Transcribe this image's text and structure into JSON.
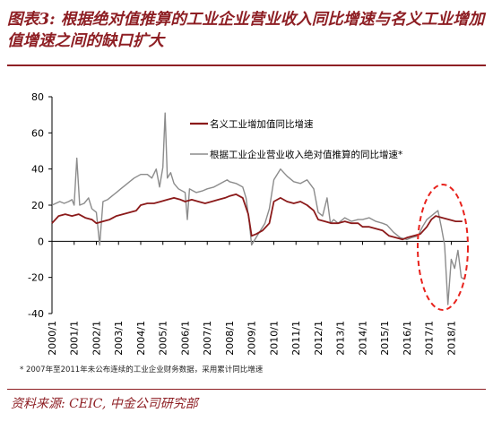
{
  "title": "图表3: 根据绝对值推算的工业企业营业收入同比增速与名义工业增加值增速之间的缺口扩大",
  "note": "* 2007年至2011年未公布连续的工业企业财务数据，采用累计同比增速",
  "source": "资料来源: CEIC, 中金公司研究部",
  "colors": {
    "title": "#8e1f24",
    "series1": "#8b1a1a",
    "series2": "#8c8c8c",
    "highlight": "#e8231d"
  },
  "chart_data": {
    "type": "line",
    "ylim": [
      -40,
      80
    ],
    "yticks": [
      "80",
      "60",
      "40",
      "20",
      "0",
      "-20",
      "-40"
    ],
    "xlim": [
      2000.0,
      2018.75
    ],
    "xticks": [
      "2000/1",
      "2001/1",
      "2002/1",
      "2003/1",
      "2004/1",
      "2005/1",
      "2006/1",
      "2007/1",
      "2008/1",
      "2009/1",
      "2010/1",
      "2011/1",
      "2012/1",
      "2013/1",
      "2014/1",
      "2015/1",
      "2016/1",
      "2017/1",
      "2018/1"
    ],
    "legend": [
      "名义工业增加值同比增速",
      "根据工业企业营业收入绝对值推算的同比增速*"
    ],
    "series": [
      {
        "name": "名义工业增加值同比增速",
        "x": [
          2000.0,
          2000.3,
          2000.6,
          2000.9,
          2001.2,
          2001.5,
          2001.8,
          2002.0,
          2002.3,
          2002.6,
          2002.9,
          2003.2,
          2003.5,
          2003.8,
          2004.0,
          2004.3,
          2004.6,
          2004.9,
          2005.2,
          2005.5,
          2005.8,
          2006.0,
          2006.3,
          2006.6,
          2006.9,
          2007.2,
          2007.5,
          2007.8,
          2008.0,
          2008.3,
          2008.6,
          2008.85,
          2009.0,
          2009.2,
          2009.5,
          2009.8,
          2010.0,
          2010.3,
          2010.6,
          2010.9,
          2011.2,
          2011.5,
          2011.8,
          2012.0,
          2012.3,
          2012.6,
          2012.9,
          2013.2,
          2013.5,
          2013.8,
          2014.0,
          2014.3,
          2014.6,
          2014.9,
          2015.2,
          2015.5,
          2015.8,
          2016.0,
          2016.3,
          2016.6,
          2016.9,
          2017.1,
          2017.3,
          2017.6,
          2017.9,
          2018.2,
          2018.5
        ],
        "values": [
          10,
          14,
          15,
          14,
          15,
          13,
          12,
          10,
          11,
          12,
          14,
          15,
          16,
          17,
          20,
          21,
          21,
          22,
          23,
          24,
          23,
          22,
          23,
          22,
          21,
          22,
          23,
          24,
          25,
          26,
          24,
          15,
          3,
          4,
          6,
          10,
          22,
          24,
          22,
          21,
          22,
          20,
          17,
          12,
          11,
          10,
          10,
          11,
          10,
          10,
          8,
          8,
          7,
          6,
          3,
          2,
          1,
          2,
          3,
          4,
          8,
          12,
          14,
          13,
          12,
          11,
          11
        ]
      },
      {
        "name": "根据工业企业营业收入绝对值推算的同比增速*",
        "x": [
          2000.0,
          2000.35,
          2000.55,
          2000.75,
          2000.9,
          2001.0,
          2001.12,
          2001.25,
          2001.45,
          2001.65,
          2001.8,
          2002.0,
          2002.15,
          2002.3,
          2002.5,
          2002.7,
          2002.9,
          2003.1,
          2003.3,
          2003.5,
          2003.7,
          2004.0,
          2004.3,
          2004.5,
          2004.7,
          2004.85,
          2005.0,
          2005.1,
          2005.2,
          2005.35,
          2005.5,
          2005.7,
          2006.0,
          2006.1,
          2006.2,
          2006.35,
          2006.5,
          2006.8,
          2007.0,
          2007.3,
          2007.6,
          2007.9,
          2008.0,
          2008.3,
          2008.6,
          2008.75,
          2008.9,
          2009.0,
          2009.3,
          2009.6,
          2009.8,
          2010.0,
          2010.3,
          2010.6,
          2010.9,
          2011.2,
          2011.5,
          2011.8,
          2012.0,
          2012.2,
          2012.4,
          2012.55,
          2012.7,
          2012.9,
          2013.2,
          2013.5,
          2013.8,
          2014.0,
          2014.3,
          2014.6,
          2014.9,
          2015.1,
          2015.4,
          2015.7,
          2016.0,
          2016.2,
          2016.5,
          2016.7,
          2016.9,
          2017.1,
          2017.2,
          2017.4,
          2017.55,
          2017.7,
          2017.85,
          2018.0,
          2018.15,
          2018.3,
          2018.45,
          2018.6
        ],
        "values": [
          20,
          22,
          21,
          22,
          23,
          20,
          46,
          20,
          21,
          24,
          18,
          16,
          -2,
          22,
          23,
          25,
          27,
          29,
          31,
          33,
          35,
          37,
          37,
          35,
          40,
          30,
          41,
          71,
          35,
          38,
          32,
          29,
          27,
          12,
          29,
          28,
          27,
          28,
          29,
          30,
          32,
          34,
          33,
          32,
          30,
          24,
          10,
          -2,
          4,
          10,
          18,
          34,
          40,
          36,
          33,
          32,
          34,
          29,
          16,
          14,
          24,
          10,
          12,
          10,
          13,
          11,
          12,
          12,
          13,
          11,
          10,
          9,
          5,
          2,
          1,
          2,
          3,
          8,
          12,
          14,
          15,
          17,
          8,
          -2,
          -35,
          -10,
          -15,
          -5,
          -20,
          -21
        ]
      }
    ]
  }
}
